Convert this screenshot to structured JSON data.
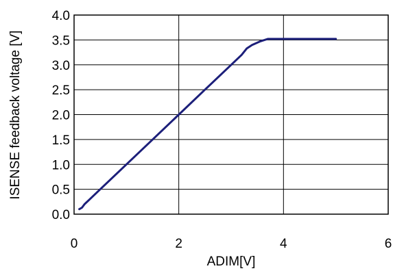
{
  "chart_data": {
    "type": "line",
    "xlabel": "ADIM[V]",
    "ylabel": "ISENSE feedback voltage [V]",
    "xlim": [
      0,
      6
    ],
    "ylim": [
      0,
      4
    ],
    "x_ticks": [
      "0",
      "2",
      "4",
      "6"
    ],
    "y_ticks": [
      "0.0",
      "0.5",
      "1.0",
      "1.5",
      "2.0",
      "2.5",
      "3.0",
      "3.5",
      "4.0"
    ],
    "grid": true,
    "legend": "none",
    "series": [
      {
        "color": "#1c1f7a",
        "x": [
          0.1,
          0.15,
          0.2,
          0.3,
          0.5,
          1.0,
          1.5,
          2.0,
          2.5,
          3.0,
          3.2,
          3.3,
          3.4,
          3.55,
          3.7,
          4.0,
          4.5,
          5.0
        ],
        "y": [
          0.1,
          0.13,
          0.2,
          0.3,
          0.5,
          1.0,
          1.5,
          2.0,
          2.5,
          3.0,
          3.2,
          3.33,
          3.4,
          3.47,
          3.52,
          3.52,
          3.52,
          3.52
        ]
      }
    ]
  }
}
